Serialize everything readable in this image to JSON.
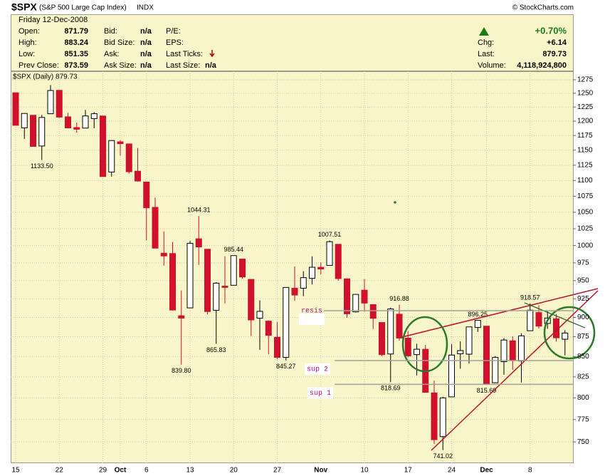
{
  "header": {
    "symbol": "$SPX",
    "name": "(S&P 500 Large Cap Index)",
    "exchange": "INDX",
    "source": "© StockCharts.com",
    "date": "Friday  12-Dec-2008",
    "quote": [
      [
        "Open:",
        "871.79"
      ],
      [
        "High:",
        "883.24"
      ],
      [
        "Low:",
        "851.35"
      ],
      [
        "Prev Close:",
        "873.59"
      ]
    ],
    "bid": [
      [
        "Bid:",
        "n/a"
      ],
      [
        "Bid Size:",
        "n/a"
      ],
      [
        "Ask:",
        "n/a"
      ],
      [
        "Ask Size:",
        "n/a"
      ]
    ],
    "ticks": [
      "P/E:",
      "EPS:",
      "Last Ticks:",
      "Last Size:"
    ],
    "last_size": "n/a",
    "change_pct": "+0.70%",
    "stats": [
      [
        "Chg:",
        "+6.14"
      ],
      [
        "Last:",
        "879.73"
      ],
      [
        "Volume:",
        "4,118,924,800"
      ]
    ]
  },
  "chart_data": {
    "type": "candlestick",
    "legend": "$SPX (Daily) 879.73",
    "scale": "log",
    "grid": true,
    "up_color": "#000000",
    "down_color": "#d0102c",
    "categories": [
      "15",
      null,
      null,
      null,
      null,
      "22",
      null,
      null,
      null,
      null,
      "29",
      null,
      "Oct",
      null,
      null,
      "6",
      null,
      null,
      null,
      null,
      "13",
      null,
      null,
      null,
      null,
      "20",
      null,
      null,
      null,
      null,
      "27",
      null,
      null,
      null,
      null,
      "Nov",
      null,
      null,
      null,
      null,
      "10",
      null,
      null,
      null,
      null,
      "17",
      null,
      null,
      null,
      null,
      "24",
      null,
      null,
      null,
      "Dec",
      null,
      null,
      null,
      null,
      "8",
      null,
      null,
      null,
      null
    ],
    "open": [
      1250.92,
      1188.31,
      1210.34,
      1157.08,
      1213.11,
      1255.37,
      1207.61,
      1188.79,
      1187.87,
      1204.47,
      1209.07,
      1113.78,
      1164.17,
      1160.64,
      1115.16,
      1097.56,
      1057.6,
      988.91,
      988.42,
      902.31,
      912.75,
      1009.97,
      994.6,
      909.53,
      942.29,
      943.51,
      980.4,
      951.67,
      899.08,
      895.22,
      874.28,
      848.92,
      939.51,
      939.38,
      953.11,
      968.67,
      971.31,
      1001.84,
      952.4,
      907.44,
      936.75,
      917.15,
      893.39,
      853.13,
      904.36,
      873.23,
      852.34,
      859.03,
      805.87,
      755.84,
      801.2,
      853.4,
      852.9,
      886.89,
      888.61,
      817.94,
      843.6,
      869.75,
      844.43,
      882.71,
      906.48,
      892.17,
      898.35,
      871.79
    ],
    "high": [
      1250.92,
      1214.02,
      1210.34,
      1211.14,
      1265.12,
      1255.37,
      1214.84,
      1197.41,
      1220.03,
      1215.77,
      1209.07,
      1167.03,
      1167.03,
      1160.64,
      1153.82,
      1097.56,
      1072.91,
      1021.06,
      1005.25,
      936.36,
      1006.93,
      1044.31,
      994.6,
      947.71,
      984.64,
      985.44,
      980.4,
      951.67,
      922.83,
      896.3,
      893.78,
      940.51,
      969.97,
      963.23,
      984.38,
      975.6,
      1007.51,
      1001.84,
      952.4,
      931.46,
      951.95,
      917.15,
      893.39,
      913.03,
      916.88,
      882.29,
      865.9,
      864.57,
      820.52,
      801.2,
      865.6,
      868.94,
      887.68,
      896.25,
      888.61,
      850.54,
      873.12,
      875.6,
      879.42,
      918.57,
      916.26,
      908.27,
      904.63,
      883.24
    ],
    "low": [
      1192.7,
      1169.28,
      1155.88,
      1133.5,
      1213.11,
      1205.61,
      1187.8,
      1179.79,
      1187.87,
      1187.5,
      1106.42,
      1106.42,
      1140.77,
      1111.43,
      1098.14,
      1007.97,
      996.23,
      970.97,
      909.19,
      839.8,
      912.75,
      972.07,
      903.99,
      865.83,
      918.74,
      943.51,
      952.47,
      875.81,
      858.44,
      852.85,
      846.75,
      845.27,
      922.26,
      928.5,
      944.59,
      958.78,
      971.31,
      949.86,
      899.73,
      906.9,
      907.49,
      884.85,
      850.54,
      818.69,
      869.88,
      848.98,
      826.75,
      806.18,
      747.78,
      741.02,
      801.2,
      834.99,
      841.37,
      881.2,
      815.69,
      817.94,
      827.6,
      833.6,
      818.41,
      882.71,
      885.39,
      885.22,
      868.71,
      851.35
    ],
    "close": [
      1192.7,
      1213.6,
      1156.39,
      1206.51,
      1255.08,
      1207.09,
      1188.22,
      1185.87,
      1209.18,
      1213.27,
      1106.42,
      1166.36,
      1161.06,
      1114.28,
      1099.23,
      1056.89,
      996.23,
      984.94,
      909.92,
      899.22,
      1003.35,
      998.01,
      907.84,
      946.43,
      940.55,
      985.4,
      955.05,
      896.78,
      908.11,
      876.77,
      848.92,
      940.51,
      930.09,
      954.09,
      968.75,
      966.3,
      1005.75,
      952.77,
      904.88,
      930.99,
      919.21,
      898.95,
      852.3,
      911.29,
      873.29,
      850.75,
      859.12,
      806.58,
      752.44,
      800.03,
      851.81,
      857.39,
      887.68,
      896.24,
      816.21,
      848.81,
      870.74,
      845.22,
      876.07,
      909.7,
      888.67,
      899.24,
      873.59,
      879.73
    ],
    "high_value_labels": [
      null,
      null,
      null,
      null,
      null,
      null,
      null,
      null,
      null,
      null,
      null,
      null,
      null,
      null,
      null,
      null,
      null,
      null,
      null,
      null,
      null,
      "1044.31",
      null,
      null,
      null,
      "985.44",
      null,
      null,
      null,
      null,
      null,
      null,
      null,
      null,
      null,
      null,
      "1007.51",
      null,
      null,
      null,
      null,
      null,
      null,
      null,
      "916.88",
      null,
      null,
      null,
      null,
      null,
      null,
      null,
      null,
      "896.25",
      null,
      null,
      null,
      null,
      null,
      "918.57",
      null,
      null,
      null,
      null
    ],
    "low_value_labels": [
      null,
      null,
      null,
      "1133.50",
      null,
      null,
      null,
      null,
      null,
      null,
      null,
      null,
      null,
      null,
      null,
      null,
      null,
      null,
      null,
      "839.80",
      null,
      null,
      null,
      "865.83",
      null,
      null,
      null,
      null,
      null,
      null,
      null,
      "845.27",
      null,
      null,
      null,
      null,
      null,
      null,
      null,
      null,
      null,
      null,
      null,
      "818.69",
      null,
      null,
      null,
      null,
      null,
      "741.02",
      null,
      null,
      null,
      null,
      "815.69",
      null,
      null,
      null,
      null,
      null,
      null,
      null,
      null,
      null
    ],
    "ylim": [
      727,
      1291
    ],
    "yticks": [
      750,
      775,
      800,
      825,
      850,
      875,
      900,
      925,
      950,
      975,
      1000,
      1025,
      1050,
      1075,
      1100,
      1125,
      1150,
      1175,
      1200,
      1225,
      1250,
      1275
    ],
    "annotations": [
      {
        "text": "resis",
        "value": 909
      },
      {
        "text": "sup 2",
        "value": 845
      },
      {
        "text": "sup 1",
        "value": 816
      }
    ]
  }
}
